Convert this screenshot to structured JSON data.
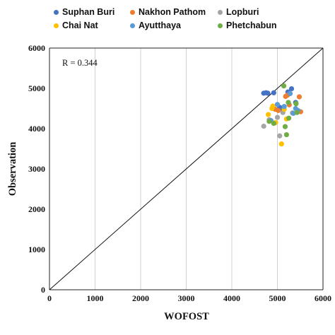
{
  "chart_data": {
    "type": "scatter",
    "title": "",
    "xlabel": "WOFOST",
    "ylabel": "Observation",
    "xlim": [
      0,
      6000
    ],
    "ylim": [
      0,
      6000
    ],
    "xticks": [
      0,
      1000,
      2000,
      3000,
      4000,
      5000,
      6000
    ],
    "yticks": [
      0,
      1000,
      2000,
      3000,
      4000,
      5000,
      6000
    ],
    "grid": "vertical",
    "legend_position": "top",
    "reference_line": "1:1",
    "annotation": "R = 0.344",
    "series": [
      {
        "name": "Suphan Buri",
        "color": "#4472C4",
        "points": [
          [
            4700,
            4880
          ],
          [
            4750,
            4890
          ],
          [
            4790,
            4880
          ],
          [
            4920,
            4890
          ],
          [
            5050,
            4530
          ],
          [
            5230,
            4910
          ],
          [
            5310,
            4990
          ],
          [
            5400,
            4650
          ],
          [
            5100,
            4500
          ]
        ]
      },
      {
        "name": "Nakhon Pathom",
        "color": "#ED7D31",
        "points": [
          [
            5180,
            4800
          ],
          [
            5220,
            4830
          ],
          [
            5480,
            4790
          ],
          [
            5260,
            4590
          ],
          [
            5510,
            4420
          ],
          [
            5020,
            4450
          ],
          [
            4950,
            4480
          ]
        ]
      },
      {
        "name": "Lopburi",
        "color": "#A5A5A5",
        "points": [
          [
            4700,
            4060
          ],
          [
            4820,
            4220
          ],
          [
            5050,
            3820
          ],
          [
            5120,
            4400
          ],
          [
            5330,
            4390
          ],
          [
            5000,
            4280
          ]
        ]
      },
      {
        "name": "Chai Nat",
        "color": "#FFC000",
        "points": [
          [
            4800,
            4350
          ],
          [
            4880,
            4500
          ],
          [
            4900,
            4560
          ],
          [
            5090,
            3620
          ],
          [
            5150,
            4480
          ],
          [
            5200,
            4240
          ],
          [
            4960,
            4150
          ]
        ]
      },
      {
        "name": "Ayutthaya",
        "color": "#5B9BD5",
        "points": [
          [
            4860,
            4200
          ],
          [
            5000,
            4600
          ],
          [
            5150,
            4550
          ],
          [
            5280,
            4870
          ],
          [
            5400,
            4500
          ],
          [
            5350,
            4380
          ],
          [
            5450,
            4450
          ]
        ]
      },
      {
        "name": "Phetchabun",
        "color": "#70AD47",
        "points": [
          [
            4820,
            4180
          ],
          [
            4920,
            4130
          ],
          [
            5140,
            5060
          ],
          [
            5170,
            4050
          ],
          [
            5200,
            3850
          ],
          [
            5240,
            4650
          ],
          [
            5250,
            4260
          ],
          [
            5410,
            4620
          ],
          [
            5430,
            4400
          ]
        ]
      }
    ]
  }
}
